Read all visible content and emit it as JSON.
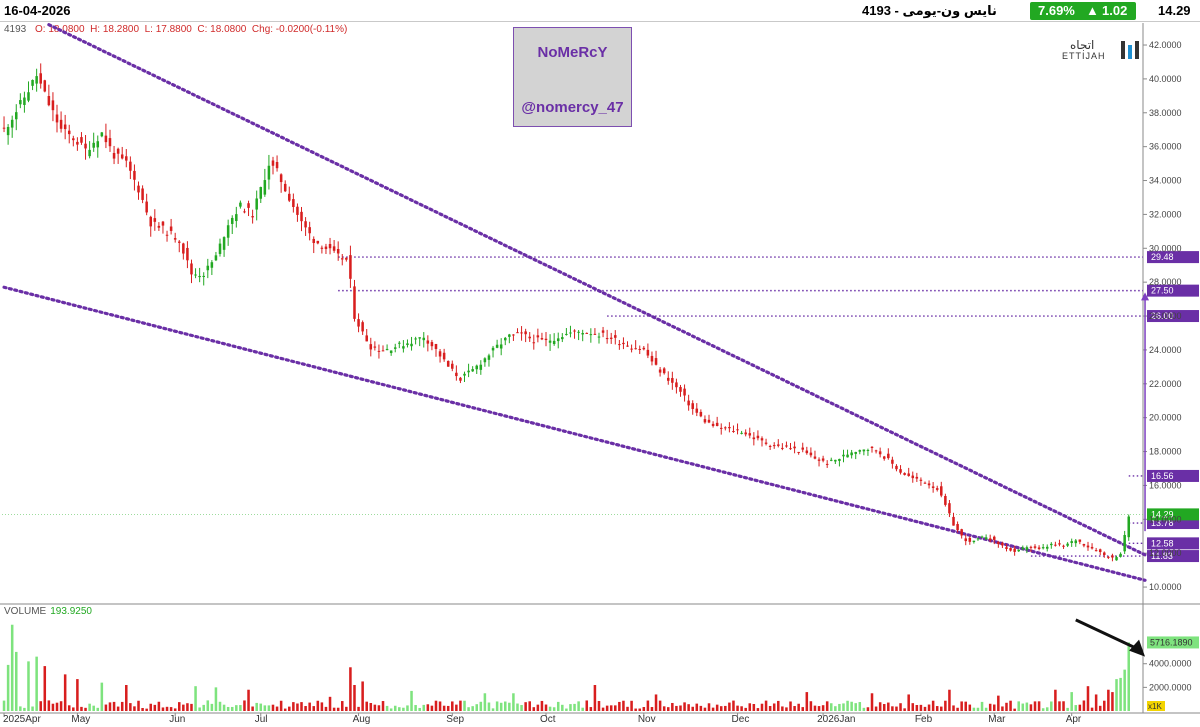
{
  "header": {
    "date": "16-04-2026",
    "title": "نايس ون-يومى - 4193",
    "change_pct": "7.69%",
    "change_abs": "1.02",
    "last_price": "14.29",
    "up_color": "#22a822"
  },
  "ohlc": {
    "symbol": "4193",
    "open": "O: 18.0800",
    "high": "H: 18.2800",
    "low": "L: 17.8800",
    "close": "C: 18.0800",
    "change": "Chg: -0.0200(-0.11%)"
  },
  "watermark": {
    "name": "NoMeRcY",
    "handle": "@nomercy_47"
  },
  "logo": {
    "arabic": "اتجاه",
    "english": "ETTIJAH"
  },
  "volume_panel": {
    "label": "VOLUME",
    "value": "193.9250",
    "current_tag": "5716.1890",
    "unit_tag": "x1K"
  },
  "chart_data": {
    "type": "candlestick",
    "price_axis": {
      "ticks": [
        10,
        12,
        14,
        16,
        18,
        20,
        22,
        24,
        26,
        28,
        30,
        32,
        34,
        36,
        38,
        40,
        42
      ],
      "tick_labels": [
        "10.0000",
        "12.0000",
        "14.0000",
        "16.0000",
        "18.0000",
        "20.0000",
        "22.0000",
        "24.0000",
        "26.0000",
        "28.0000",
        "30.0000",
        "32.0000",
        "34.0000",
        "36.0000",
        "38.0000",
        "40.0000",
        "42.0000"
      ],
      "range": [
        9,
        43.3
      ]
    },
    "volume_axis": {
      "ticks": [
        2000,
        4000
      ],
      "tick_labels": [
        "2000.0000",
        "4000.0000"
      ],
      "range": [
        0,
        7700
      ]
    },
    "x_axis": {
      "labels": [
        "2025Apr",
        "May",
        "Jun",
        "Jul",
        "Aug",
        "Sep",
        "Oct",
        "Nov",
        "Dec",
        "2026Jan",
        "Feb",
        "Mar",
        "Apr"
      ],
      "label_index": [
        0,
        18,
        42,
        63,
        87,
        110,
        133,
        157,
        180,
        201,
        225,
        243,
        262
      ]
    },
    "levels": [
      {
        "label": "29.48",
        "value": 29.48,
        "start_index": 82
      },
      {
        "label": "27.50",
        "value": 27.5,
        "start_index": 82
      },
      {
        "label": "26.00",
        "value": 26.0,
        "start_index": 148
      },
      {
        "label": "16.56",
        "value": 16.56,
        "start_index": 276
      },
      {
        "label": "13.78",
        "value": 13.78,
        "start_index": 276
      },
      {
        "label": "12.58",
        "value": 12.58,
        "start_index": 276
      },
      {
        "label": "11.83",
        "value": 11.83,
        "start_index": 252
      },
      {
        "label": "14.29",
        "value": 14.29,
        "start_index": 0
      }
    ],
    "trendlines": [
      {
        "name": "upper",
        "from": [
          11,
          43.2
        ],
        "to": [
          280,
          11.9
        ]
      },
      {
        "name": "lower",
        "from": [
          0,
          27.7
        ],
        "to": [
          280,
          10.4
        ]
      }
    ],
    "target_arrow": {
      "index": 280,
      "from": 13.3,
      "to": 27.4
    },
    "pointer_arrow": {
      "from_index": 263,
      "from_volume": 7200,
      "to_index": 280,
      "to_volume": 4600
    },
    "path_anchors": [
      [
        0,
        37
      ],
      [
        4,
        38.5
      ],
      [
        8,
        40.2
      ],
      [
        11,
        38.5
      ],
      [
        14,
        37.0
      ],
      [
        17,
        36.5
      ],
      [
        20,
        35.8
      ],
      [
        24,
        36.8
      ],
      [
        27,
        35.5
      ],
      [
        30,
        35.0
      ],
      [
        33,
        33.5
      ],
      [
        36,
        31.5
      ],
      [
        40,
        31.0
      ],
      [
        43,
        30.5
      ],
      [
        46,
        28.5
      ],
      [
        49,
        28.5
      ],
      [
        52,
        29.5
      ],
      [
        55,
        31.5
      ],
      [
        58,
        32.5
      ],
      [
        61,
        32.0
      ],
      [
        63,
        33.5
      ],
      [
        65,
        35.0
      ],
      [
        67,
        34.5
      ],
      [
        70,
        33.0
      ],
      [
        73,
        31.5
      ],
      [
        76,
        30.5
      ],
      [
        79,
        30.0
      ],
      [
        82,
        29.5
      ],
      [
        84,
        29.3
      ],
      [
        85,
        28.0
      ],
      [
        86,
        26.0
      ],
      [
        88,
        25.0
      ],
      [
        90,
        24.2
      ],
      [
        93,
        24.0
      ],
      [
        96,
        24.2
      ],
      [
        100,
        24.5
      ],
      [
        103,
        24.8
      ],
      [
        106,
        24.0
      ],
      [
        109,
        23.0
      ],
      [
        112,
        22.3
      ],
      [
        115,
        22.8
      ],
      [
        118,
        23.5
      ],
      [
        121,
        24.2
      ],
      [
        124,
        24.8
      ],
      [
        127,
        24.9
      ],
      [
        130,
        24.6
      ],
      [
        133,
        24.5
      ],
      [
        136,
        24.8
      ],
      [
        139,
        25.0
      ],
      [
        142,
        25.1
      ],
      [
        145,
        25.0
      ],
      [
        148,
        24.8
      ],
      [
        151,
        24.5
      ],
      [
        154,
        24.2
      ],
      [
        157,
        24.0
      ],
      [
        160,
        23.0
      ],
      [
        163,
        22.3
      ],
      [
        166,
        21.5
      ],
      [
        169,
        20.5
      ],
      [
        172,
        19.8
      ],
      [
        175,
        19.4
      ],
      [
        178,
        19.3
      ],
      [
        181,
        19.2
      ],
      [
        184,
        18.8
      ],
      [
        187,
        18.5
      ],
      [
        190,
        18.3
      ],
      [
        193,
        18.2
      ],
      [
        196,
        18.0
      ],
      [
        199,
        17.6
      ],
      [
        202,
        17.3
      ],
      [
        205,
        17.6
      ],
      [
        208,
        18.0
      ],
      [
        211,
        18.2
      ],
      [
        214,
        18.1
      ],
      [
        217,
        17.5
      ],
      [
        220,
        16.8
      ],
      [
        223,
        16.4
      ],
      [
        226,
        16.2
      ],
      [
        229,
        15.8
      ],
      [
        231,
        14.8
      ],
      [
        233,
        13.7
      ],
      [
        235,
        13.0
      ],
      [
        237,
        12.6
      ],
      [
        239,
        12.8
      ],
      [
        241,
        13.0
      ],
      [
        243,
        12.7
      ],
      [
        246,
        12.3
      ],
      [
        248,
        12.0
      ],
      [
        251,
        12.4
      ],
      [
        254,
        12.2
      ],
      [
        257,
        12.5
      ],
      [
        260,
        12.4
      ],
      [
        263,
        12.8
      ],
      [
        266,
        12.4
      ],
      [
        268,
        12.2
      ],
      [
        270,
        11.9
      ],
      [
        272,
        11.7
      ],
      [
        274,
        12.0
      ],
      [
        275,
        13.0
      ],
      [
        276,
        14.2
      ]
    ],
    "notable_volumes": [
      [
        1,
        3900
      ],
      [
        2,
        7300
      ],
      [
        3,
        5000
      ],
      [
        6,
        4200
      ],
      [
        8,
        4600
      ],
      [
        10,
        3800
      ],
      [
        15,
        3100
      ],
      [
        18,
        2700
      ],
      [
        24,
        2400
      ],
      [
        30,
        2200
      ],
      [
        47,
        2100
      ],
      [
        52,
        2000
      ],
      [
        60,
        1800
      ],
      [
        80,
        1200
      ],
      [
        85,
        3700
      ],
      [
        86,
        2200
      ],
      [
        88,
        2500
      ],
      [
        100,
        1700
      ],
      [
        118,
        1500
      ],
      [
        125,
        1500
      ],
      [
        145,
        2200
      ],
      [
        160,
        1400
      ],
      [
        197,
        1600
      ],
      [
        213,
        1500
      ],
      [
        222,
        1400
      ],
      [
        232,
        1800
      ],
      [
        244,
        1300
      ],
      [
        258,
        1800
      ],
      [
        262,
        1600
      ],
      [
        266,
        2100
      ],
      [
        268,
        1400
      ],
      [
        271,
        1800
      ],
      [
        272,
        1600
      ],
      [
        273,
        2700
      ],
      [
        274,
        2800
      ],
      [
        275,
        3500
      ],
      [
        276,
        5800
      ]
    ]
  }
}
